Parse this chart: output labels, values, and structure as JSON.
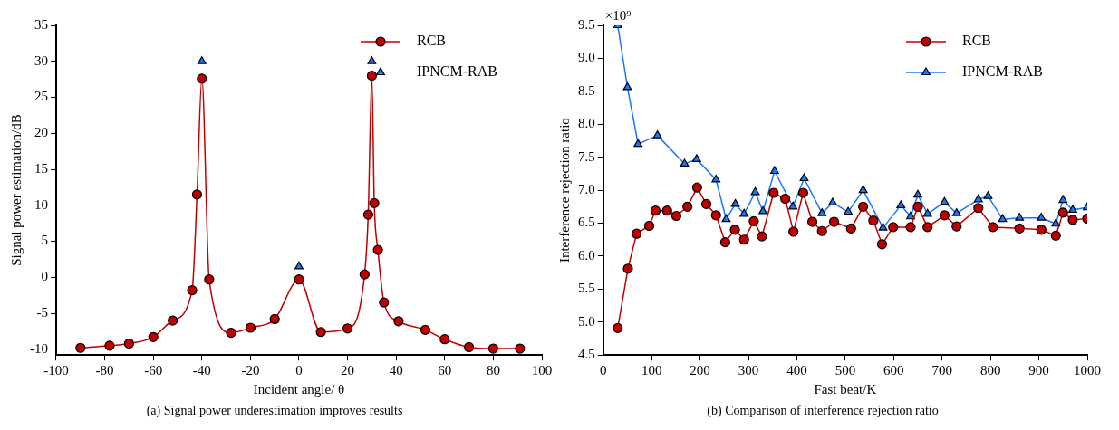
{
  "chart_data": [
    {
      "type": "line",
      "title": "(a) Signal power underestimation improves results",
      "xlabel": "Incident angle/ θ",
      "ylabel": "Signal power estimation/dB",
      "xlim": [
        -100,
        100
      ],
      "xticks": [
        -100,
        -80,
        -60,
        -40,
        -20,
        0,
        20,
        40,
        60,
        80,
        100
      ],
      "ylim": [
        -10.8,
        35
      ],
      "yticks": [
        -10,
        -5,
        0,
        5,
        10,
        15,
        20,
        25,
        30,
        35
      ],
      "grid": false,
      "legend": "top right",
      "series": [
        {
          "name": "RCB",
          "color": "#c00000",
          "marker": "circle",
          "x": [
            -90,
            -78,
            -70,
            -60,
            -52,
            -44,
            -42,
            -40,
            -37,
            -28,
            -20,
            -10,
            0,
            9,
            20,
            27,
            28.5,
            30,
            31,
            32.5,
            35,
            41,
            52,
            60,
            70,
            80,
            91
          ],
          "values": [
            -9.8,
            -9.5,
            -9.2,
            -8.3,
            -6,
            -1.8,
            11.5,
            27.6,
            -0.3,
            -7.7,
            -7,
            -5.8,
            -0.3,
            -7.6,
            -7.1,
            0.4,
            8.7,
            28,
            10.3,
            3.8,
            -3.5,
            -6.1,
            -7.3,
            -8.6,
            -9.7,
            -9.9,
            -9.9
          ]
        },
        {
          "name": "IPNCM-RAB",
          "type": "scatter",
          "color": "#1a75ff",
          "marker": "triangle",
          "x": [
            -40,
            0,
            30
          ],
          "values": [
            30,
            1.5,
            30
          ]
        }
      ]
    },
    {
      "type": "line",
      "title": "(b) Comparison of interference rejection ratio",
      "xlabel": "Fast beat/K",
      "ylabel": "Interference rejection ratio",
      "annotations": [
        "×10⁹"
      ],
      "xlim": [
        0,
        1000
      ],
      "xticks": [
        0,
        100,
        200,
        300,
        400,
        500,
        600,
        700,
        800,
        900,
        1000
      ],
      "ylim": [
        4.5,
        9.5
      ],
      "yticks": [
        4.5,
        {
          "value": 5,
          "label": "5.0"
        },
        5.5,
        {
          "value": 6,
          "label": "6.0"
        },
        6.5,
        {
          "value": 7,
          "label": "7.0"
        },
        7.5,
        {
          "value": 8,
          "label": "8.0"
        },
        8.5,
        {
          "value": 9,
          "label": "9.0"
        },
        9.5
      ],
      "grid": false,
      "legend": "top right",
      "series": [
        {
          "name": "RCB",
          "color": "#c00000",
          "marker": "circle",
          "x": [
            30,
            51,
            69,
            95,
            108,
            132,
            151,
            174,
            194,
            213,
            233,
            252,
            272,
            291,
            311,
            328,
            352,
            376,
            393,
            413,
            432,
            452,
            477,
            512,
            537,
            558,
            576,
            599,
            635,
            650,
            670,
            705,
            730,
            775,
            805,
            860,
            905,
            935,
            950,
            970,
            1000
          ],
          "values": [
            4.91,
            5.81,
            6.34,
            6.46,
            6.69,
            6.69,
            6.61,
            6.75,
            7.04,
            6.79,
            6.62,
            6.21,
            6.4,
            6.25,
            6.53,
            6.3,
            6.96,
            6.87,
            6.37,
            6.96,
            6.52,
            6.38,
            6.52,
            6.42,
            6.75,
            6.54,
            6.18,
            6.44,
            6.44,
            6.75,
            6.44,
            6.62,
            6.45,
            6.73,
            6.44,
            6.42,
            6.4,
            6.31,
            6.66,
            6.55,
            6.57
          ]
        },
        {
          "name": "IPNCM-RAB",
          "color": "#1a75ff",
          "marker": "triangle",
          "x": [
            30,
            50,
            72,
            112,
            168,
            193,
            233,
            254,
            273,
            291,
            314,
            330,
            354,
            392,
            415,
            452,
            474,
            506,
            537,
            578,
            615,
            635,
            650,
            670,
            705,
            730,
            775,
            795,
            825,
            860,
            905,
            935,
            950,
            970,
            1000
          ],
          "values": [
            9.5,
            8.56,
            7.7,
            7.83,
            7.4,
            7.47,
            7.16,
            6.56,
            6.79,
            6.64,
            6.97,
            6.68,
            7.29,
            6.75,
            7.18,
            6.65,
            6.81,
            6.67,
            7,
            6.43,
            6.77,
            6.6,
            6.93,
            6.64,
            6.82,
            6.65,
            6.86,
            6.91,
            6.56,
            6.58,
            6.58,
            6.49,
            6.85,
            6.7,
            6.74
          ]
        }
      ]
    }
  ]
}
